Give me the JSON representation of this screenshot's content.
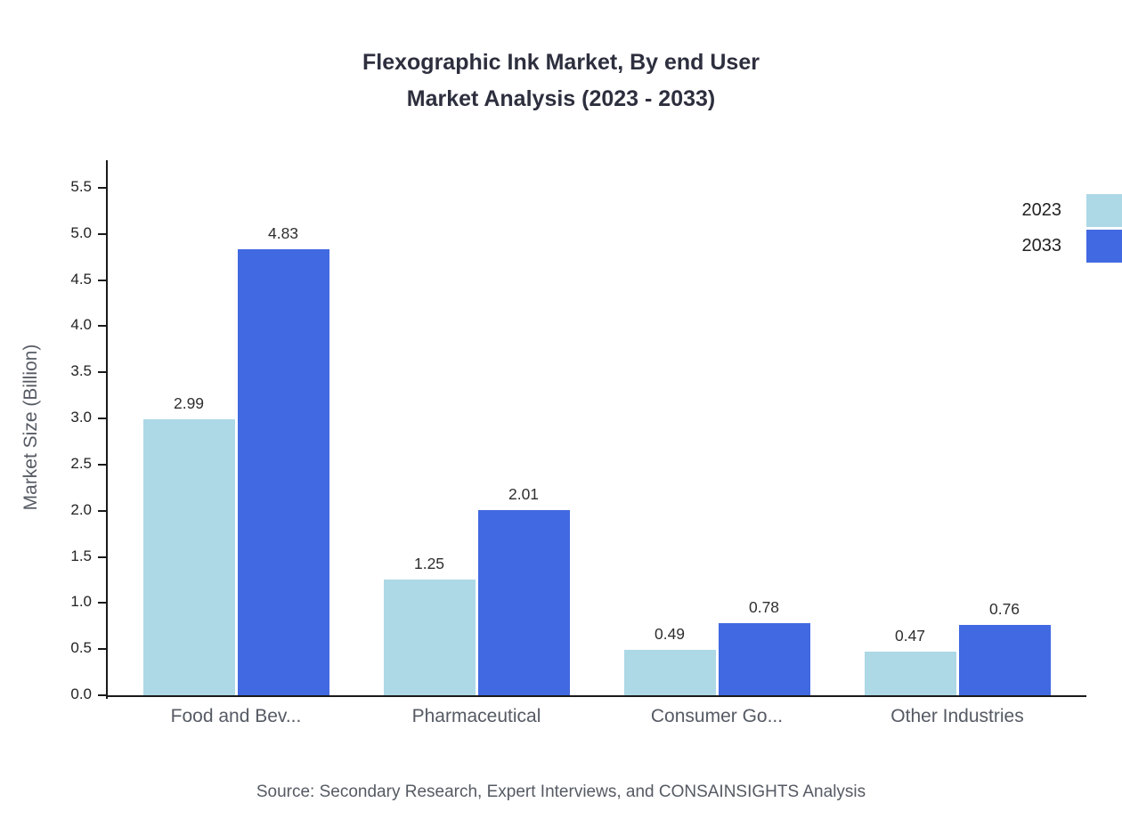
{
  "title": {
    "line1": "Flexographic Ink Market, By end User",
    "line2": "Market Analysis (2023 - 2033)"
  },
  "source": "Source: Secondary Research, Expert Interviews, and CONSAINSIGHTS Analysis",
  "colors": {
    "series_2023": "#add8e6",
    "series_2033": "#4169e1",
    "axis": "#1a1a1a",
    "muted_text": "#555a63",
    "title_text": "#2d2f3e"
  },
  "chart_data": {
    "type": "bar",
    "title": "Flexographic Ink Market, By end User Market Analysis (2023 - 2033)",
    "categories": [
      "Food and Bev...",
      "Pharmaceutical",
      "Consumer Go...",
      "Other Industries"
    ],
    "series": [
      {
        "name": "2023",
        "color": "#add8e6",
        "values": [
          2.99,
          1.25,
          0.49,
          0.47
        ]
      },
      {
        "name": "2033",
        "color": "#4169e1",
        "values": [
          4.83,
          2.01,
          0.78,
          0.76
        ]
      }
    ],
    "xlabel": "",
    "ylabel": "Market Size (Billion)",
    "ylim": [
      0,
      5.5
    ],
    "ytick_step": 0.5,
    "grid": false,
    "legend_position": "top-right"
  }
}
